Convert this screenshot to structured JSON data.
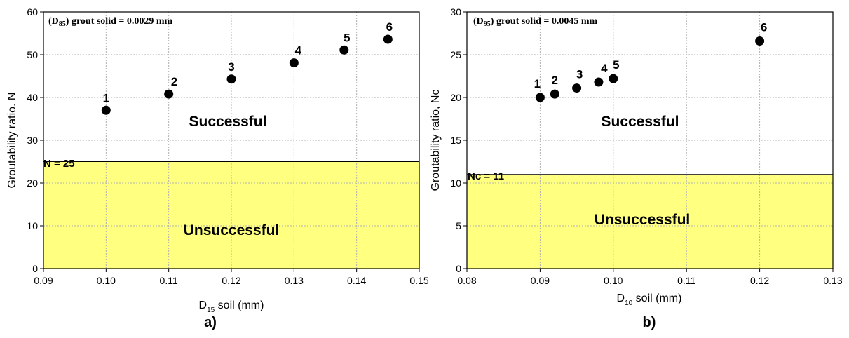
{
  "chart_data": [
    {
      "type": "scatter",
      "panel_label": "a)",
      "annotation": {
        "prefix": "(D",
        "sub": "85",
        "suffix": ") grout solid = 0.0029 mm"
      },
      "xlabel": {
        "main": "D",
        "sub": "15",
        "rest": " soil (mm)"
      },
      "ylabel": "Groutability ratio. N",
      "xlim": [
        0.09,
        0.15
      ],
      "ylim": [
        0,
        60
      ],
      "xticks": [
        "0.09",
        "0.10",
        "0.11",
        "0.12",
        "0.13",
        "0.14",
        "0.15"
      ],
      "yticks": [
        "0",
        "10",
        "20",
        "30",
        "40",
        "50",
        "60"
      ],
      "grid": true,
      "points": [
        {
          "label": "1",
          "x": 0.1,
          "y": 37.0
        },
        {
          "label": "2",
          "x": 0.11,
          "y": 40.8
        },
        {
          "label": "3",
          "x": 0.12,
          "y": 44.3
        },
        {
          "label": "4",
          "x": 0.13,
          "y": 48.1
        },
        {
          "label": "5",
          "x": 0.138,
          "y": 51.1
        },
        {
          "label": "6",
          "x": 0.145,
          "y": 53.6
        }
      ],
      "threshold": {
        "value": 25,
        "label": "N = 25"
      },
      "success_label": "Successful",
      "fail_label": "Unsuccessful",
      "fail_color": "#ffff80"
    },
    {
      "type": "scatter",
      "panel_label": "b)",
      "annotation": {
        "prefix": "(D",
        "sub": "95",
        "suffix": ") grout solid = 0.0045 mm"
      },
      "xlabel": {
        "main": "D",
        "sub": "10",
        "rest": " soil (mm)"
      },
      "ylabel": "Groutability ratio, Nc",
      "xlim": [
        0.08,
        0.13
      ],
      "ylim": [
        0,
        30
      ],
      "xticks": [
        "0.08",
        "0.09",
        "0.10",
        "0.11",
        "0.12",
        "0.13"
      ],
      "yticks": [
        "0",
        "5",
        "10",
        "15",
        "20",
        "25",
        "30"
      ],
      "grid": true,
      "points": [
        {
          "label": "1",
          "x": 0.09,
          "y": 20.0
        },
        {
          "label": "2",
          "x": 0.092,
          "y": 20.4
        },
        {
          "label": "3",
          "x": 0.095,
          "y": 21.1
        },
        {
          "label": "4",
          "x": 0.098,
          "y": 21.8
        },
        {
          "label": "5",
          "x": 0.1,
          "y": 22.2
        },
        {
          "label": "6",
          "x": 0.12,
          "y": 26.6
        }
      ],
      "threshold": {
        "value": 11,
        "label": "Nc = 11"
      },
      "success_label": "Successful",
      "fail_label": "Unsuccessful",
      "fail_color": "#ffff80"
    }
  ]
}
